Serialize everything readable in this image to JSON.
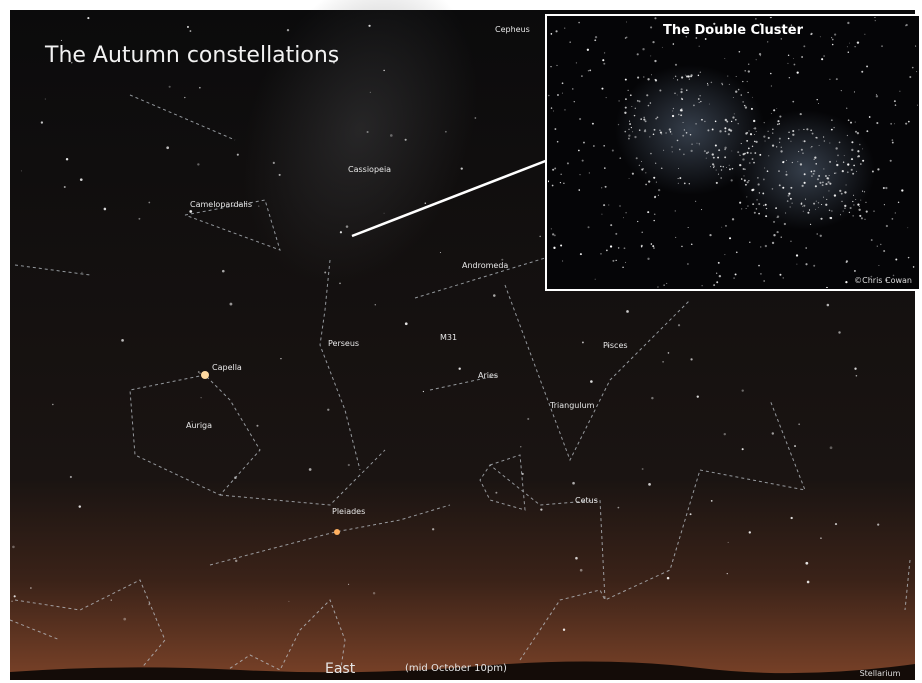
{
  "title": "The Autumn constellations",
  "inset": {
    "title": "The Double Cluster",
    "credit": "©Chris Cowan"
  },
  "labels": [
    "Cepheus",
    "Cassiopeia",
    "Camelopardalis",
    "Andromeda",
    "Perseus",
    "M31",
    "Aries",
    "Capella",
    "Auriga",
    "Pisces",
    "Cetus",
    "Pleiades",
    "Triangulum"
  ],
  "footer": {
    "direction": "East",
    "time": "(mid October 10pm)",
    "credit": "Stellarium"
  }
}
